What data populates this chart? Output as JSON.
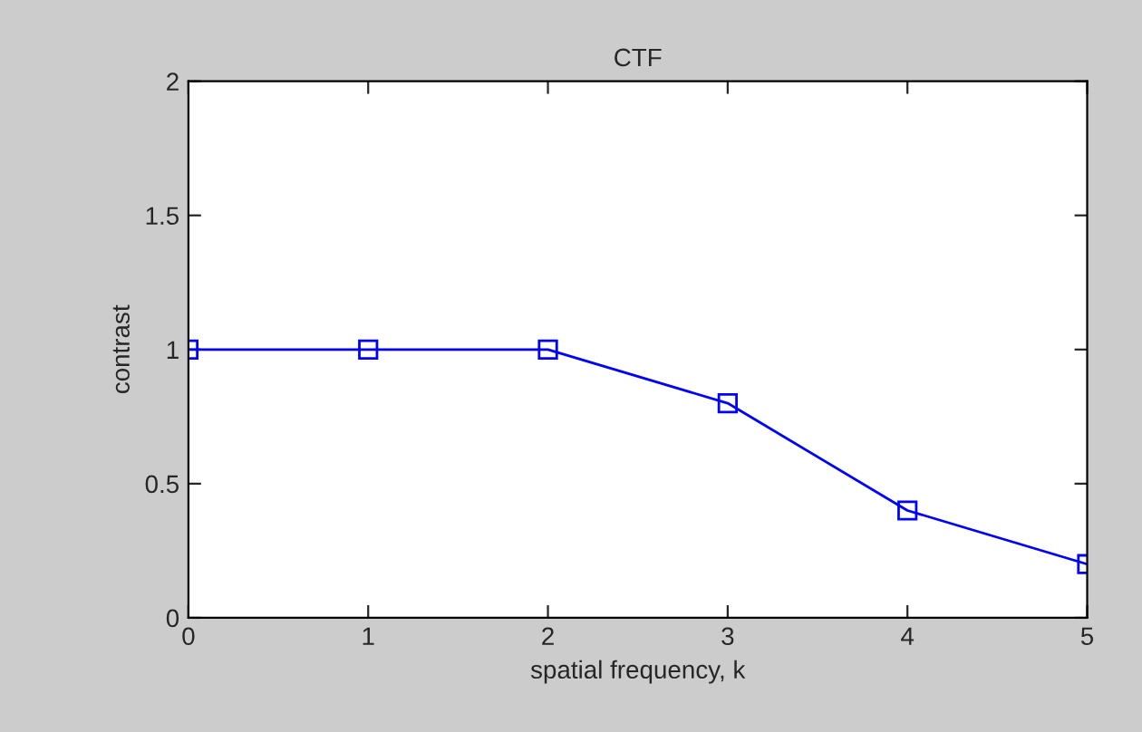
{
  "chart_data": {
    "type": "line",
    "title": "CTF",
    "xlabel": "spatial frequency, k",
    "ylabel": "contrast",
    "x": [
      0,
      1,
      2,
      3,
      4,
      5
    ],
    "series": [
      {
        "color": "#0000ff",
        "values": [
          1,
          1,
          1,
          0.8,
          0.4,
          0.2
        ]
      }
    ],
    "xlim": [
      0,
      5
    ],
    "xticks": [
      0,
      1,
      2,
      3,
      4,
      5
    ],
    "ylim": [
      0,
      2
    ],
    "yticks": [
      0,
      0.5,
      1,
      1.5,
      2
    ],
    "marker": "square",
    "line_style": "solid"
  }
}
